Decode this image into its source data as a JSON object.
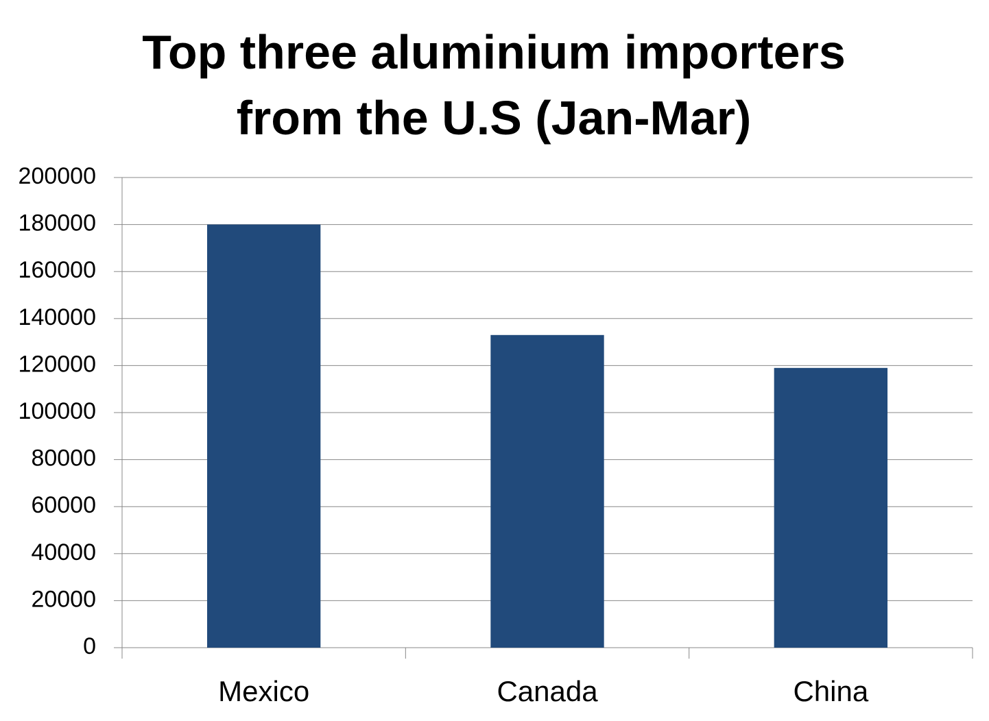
{
  "chart_data": {
    "type": "bar",
    "title": "Top three aluminium importers from the U.S (Jan-Mar)",
    "categories": [
      "Mexico",
      "Canada",
      "China"
    ],
    "values": [
      180000,
      133000,
      119000
    ],
    "color": "#214a7b",
    "ylim": [
      0,
      200000
    ],
    "yticks": [
      0,
      20000,
      40000,
      60000,
      80000,
      100000,
      120000,
      140000,
      160000,
      180000,
      200000
    ],
    "grid": true
  }
}
